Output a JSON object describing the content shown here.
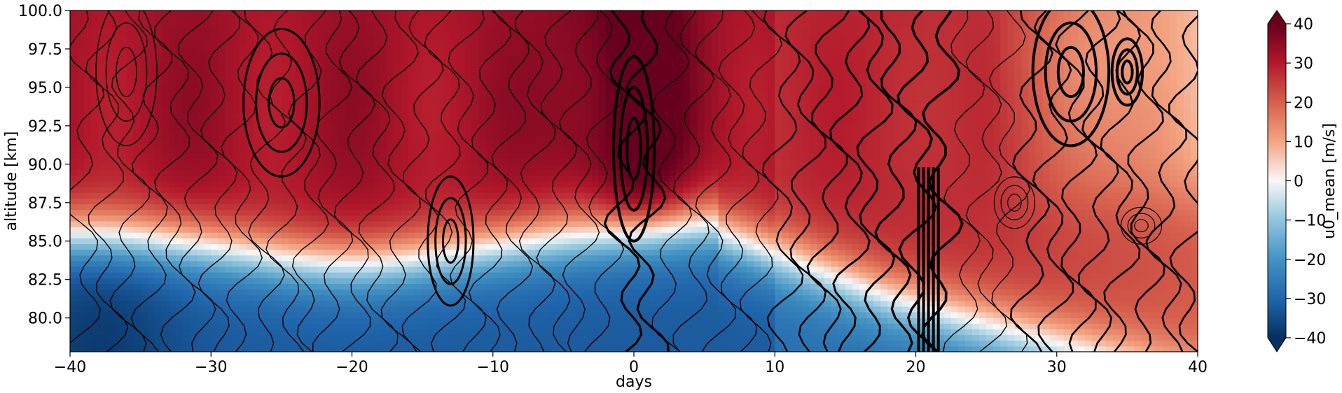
{
  "chart_data": {
    "type": "heatmap",
    "title": "",
    "xlabel": "days",
    "ylabel": "altitude [km]",
    "xlim": [
      -40,
      40
    ],
    "ylim": [
      77.8,
      100.0
    ],
    "x_ticks": [
      -40,
      -30,
      -20,
      -10,
      0,
      10,
      20,
      30,
      40
    ],
    "x_tick_labels": [
      "−40",
      "−30",
      "−20",
      "−10",
      "0",
      "10",
      "20",
      "30",
      "40"
    ],
    "y_ticks": [
      80.0,
      82.5,
      85.0,
      87.5,
      90.0,
      92.5,
      95.0,
      97.5,
      100.0
    ],
    "y_tick_labels": [
      "80.0",
      "82.5",
      "85.0",
      "87.5",
      "90.0",
      "92.5",
      "95.0",
      "97.5",
      "100.0"
    ],
    "colorbar": {
      "label": "u0_mean [m/s]",
      "colormap": "RdBu_r",
      "range": [
        -40,
        40
      ],
      "extend": "both",
      "ticks": [
        -40,
        -30,
        -20,
        -10,
        0,
        10,
        20,
        30,
        40
      ],
      "tick_labels": [
        "−40",
        "−30",
        "−20",
        "−10",
        "0",
        "10",
        "20",
        "30",
        "40"
      ]
    },
    "filled_field_description": "u0_mean: eastward wind; negative below ~85 km before day 10, positive above; max near day 0 at 90-100 km",
    "filled_field_samples": [
      {
        "day": -38,
        "altitude": 98,
        "value": 30
      },
      {
        "day": -38,
        "altitude": 80,
        "value": -32
      },
      {
        "day": -20,
        "altitude": 95,
        "value": 30
      },
      {
        "day": -20,
        "altitude": 82,
        "value": -24
      },
      {
        "day": 0,
        "altitude": 92,
        "value": 42
      },
      {
        "day": 0,
        "altitude": 80,
        "value": -5
      },
      {
        "day": 15,
        "altitude": 95,
        "value": 28
      },
      {
        "day": 15,
        "altitude": 82,
        "value": 0
      },
      {
        "day": 35,
        "altitude": 98,
        "value": 12
      },
      {
        "day": 35,
        "altitude": 80,
        "value": 5
      }
    ],
    "overlay": "black line contours of a second field; thick lines = larger magnitude",
    "grid": false
  }
}
